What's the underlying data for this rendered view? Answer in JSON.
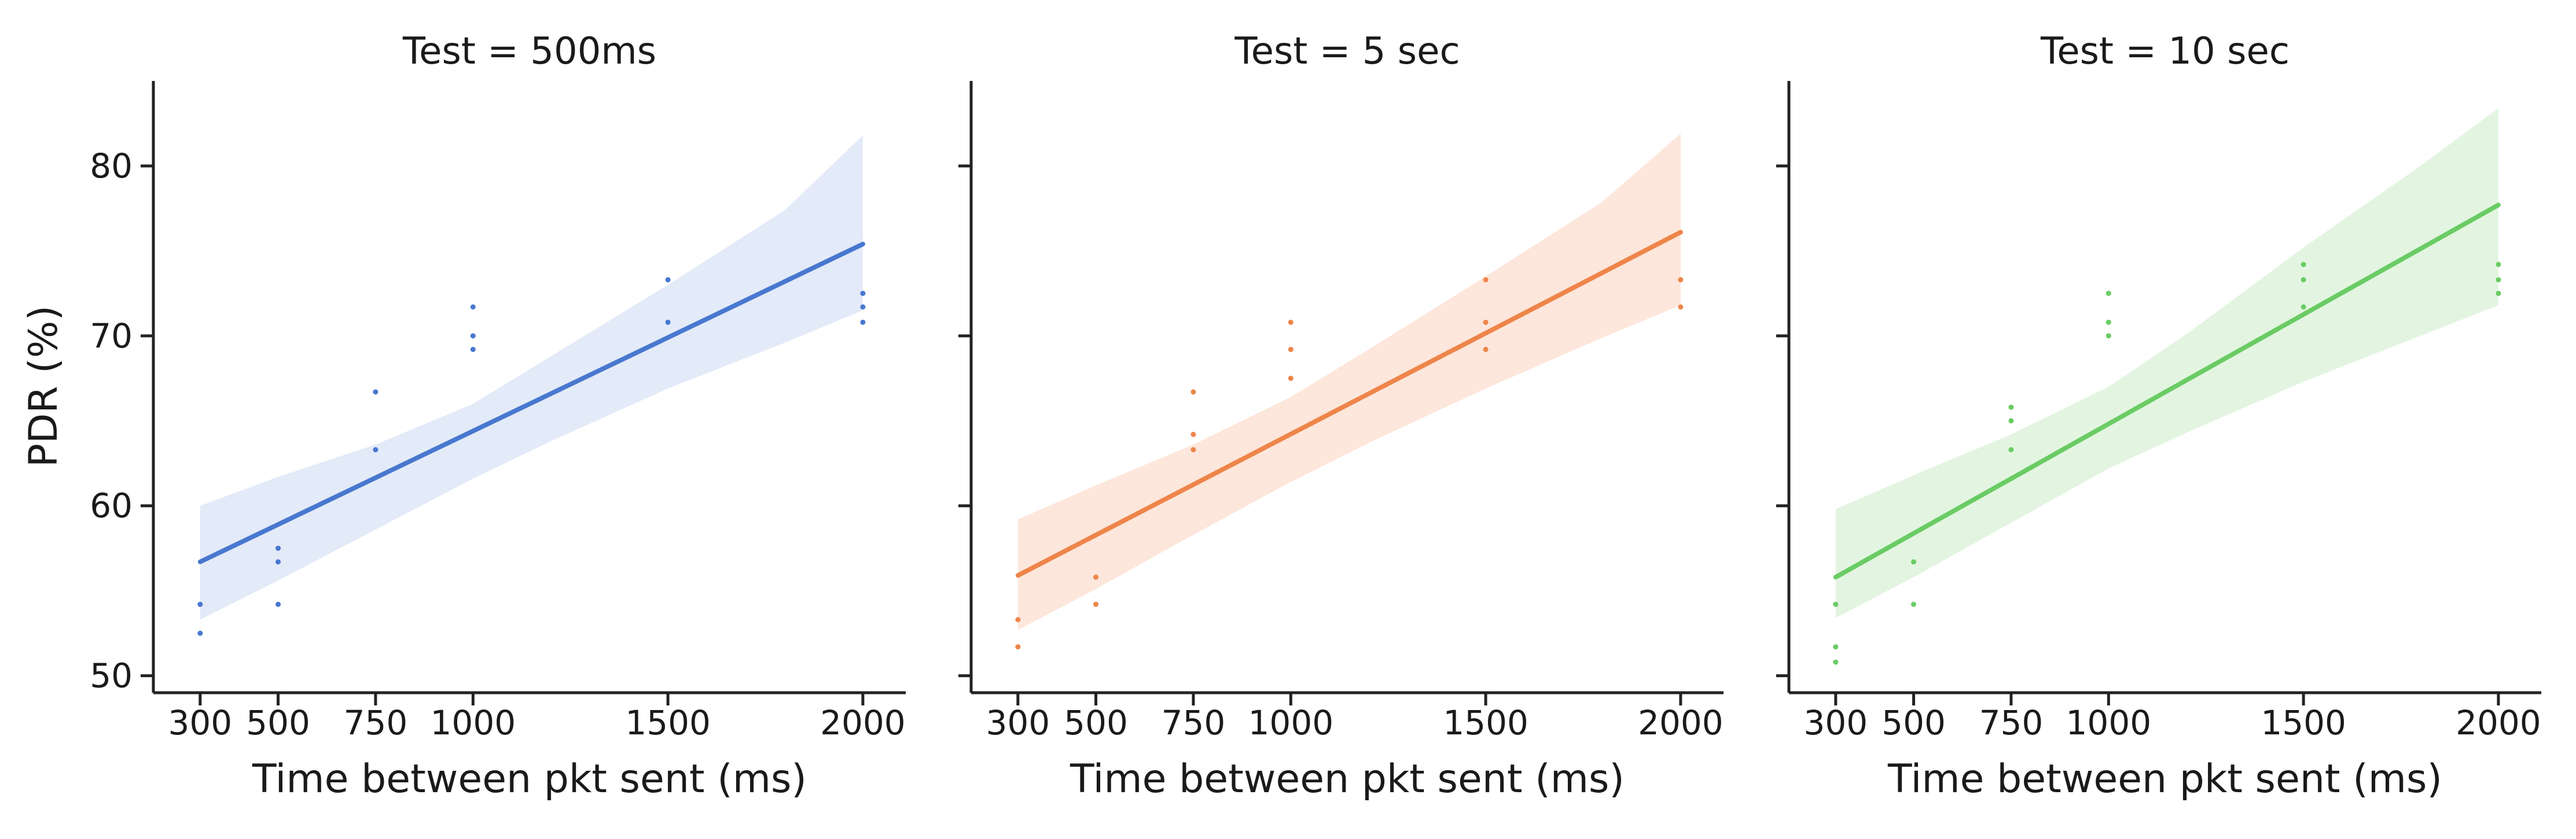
{
  "chart_data": {
    "type": "scatter",
    "ylabel": "PDR (%)",
    "ylim": [
      49,
      85
    ],
    "yticks": [
      50,
      60,
      70,
      80
    ],
    "xlim": [
      180,
      2110
    ],
    "xticks": [
      300,
      500,
      750,
      1000,
      1500,
      2000
    ],
    "grid": false,
    "legend": "none",
    "panels": [
      {
        "title": "Test = 500ms",
        "xlabel": "Time between pkt sent (ms)",
        "color": "#4878cf",
        "band_color": "#e3eaf8",
        "points": [
          [
            300,
            54.2
          ],
          [
            300,
            52.5
          ],
          [
            500,
            57.5
          ],
          [
            500,
            56.7
          ],
          [
            500,
            54.2
          ],
          [
            750,
            66.7
          ],
          [
            750,
            63.3
          ],
          [
            1000,
            71.7
          ],
          [
            1000,
            70.0
          ],
          [
            1000,
            69.2
          ],
          [
            1500,
            73.3
          ],
          [
            1500,
            70.8
          ],
          [
            2000,
            72.5
          ],
          [
            2000,
            71.7
          ],
          [
            2000,
            70.8
          ]
        ],
        "fit": [
          [
            300,
            56.7
          ],
          [
            2000,
            75.4
          ]
        ],
        "band": [
          [
            300,
            53.3,
            60.0
          ],
          [
            500,
            55.6,
            61.7
          ],
          [
            750,
            58.6,
            63.6
          ],
          [
            1000,
            61.6,
            66.0
          ],
          [
            1200,
            63.8,
            68.8
          ],
          [
            1500,
            66.9,
            73.0
          ],
          [
            1800,
            69.6,
            77.4
          ],
          [
            2000,
            71.5,
            81.8
          ]
        ]
      },
      {
        "title": "Test = 5 sec",
        "xlabel": "Time between pkt sent (ms)",
        "color": "#ee854a",
        "band_color": "#fde6db",
        "points": [
          [
            300,
            53.3
          ],
          [
            300,
            51.7
          ],
          [
            500,
            55.8
          ],
          [
            500,
            54.2
          ],
          [
            750,
            66.7
          ],
          [
            750,
            64.2
          ],
          [
            750,
            63.3
          ],
          [
            1000,
            70.8
          ],
          [
            1000,
            69.2
          ],
          [
            1000,
            67.5
          ],
          [
            1500,
            73.3
          ],
          [
            1500,
            70.8
          ],
          [
            1500,
            69.2
          ],
          [
            2000,
            73.3
          ],
          [
            2000,
            71.7
          ]
        ],
        "fit": [
          [
            300,
            55.9
          ],
          [
            2000,
            76.1
          ]
        ],
        "band": [
          [
            300,
            52.7,
            59.2
          ],
          [
            500,
            55.1,
            61.2
          ],
          [
            750,
            58.3,
            63.6
          ],
          [
            1000,
            61.4,
            66.4
          ],
          [
            1200,
            63.7,
            69.2
          ],
          [
            1500,
            66.9,
            73.5
          ],
          [
            1800,
            69.9,
            77.9
          ],
          [
            2000,
            71.8,
            81.9
          ]
        ]
      },
      {
        "title": "Test = 10 sec",
        "xlabel": "Time between pkt sent (ms)",
        "color": "#6acc64",
        "band_color": "#e3f5e1",
        "points": [
          [
            300,
            54.2
          ],
          [
            300,
            51.7
          ],
          [
            300,
            50.8
          ],
          [
            500,
            56.7
          ],
          [
            500,
            54.2
          ],
          [
            750,
            65.8
          ],
          [
            750,
            65.0
          ],
          [
            750,
            63.3
          ],
          [
            1000,
            72.5
          ],
          [
            1000,
            70.8
          ],
          [
            1000,
            70.0
          ],
          [
            1500,
            74.2
          ],
          [
            1500,
            73.3
          ],
          [
            1500,
            71.7
          ],
          [
            2000,
            74.2
          ],
          [
            2000,
            73.3
          ],
          [
            2000,
            72.5
          ]
        ],
        "fit": [
          [
            300,
            55.8
          ],
          [
            2000,
            77.7
          ]
        ],
        "band": [
          [
            300,
            53.4,
            59.8
          ],
          [
            500,
            55.8,
            61.8
          ],
          [
            750,
            59.0,
            64.2
          ],
          [
            1000,
            62.2,
            67.0
          ],
          [
            1200,
            64.3,
            70.1
          ],
          [
            1500,
            67.3,
            75.2
          ],
          [
            1800,
            70.0,
            80.0
          ],
          [
            2000,
            71.8,
            83.4
          ]
        ]
      }
    ]
  }
}
